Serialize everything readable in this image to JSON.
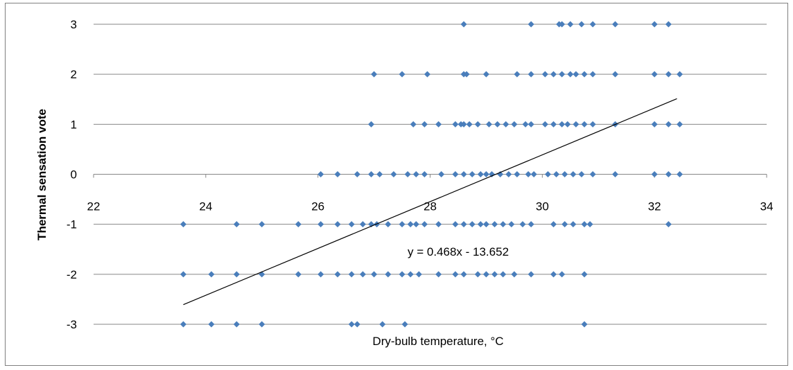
{
  "chart_data": {
    "type": "scatter",
    "xlabel": "Dry-bulb temperature, °C",
    "ylabel": "Thermal sensation vote",
    "xlim": [
      22,
      34
    ],
    "ylim": [
      -3,
      3
    ],
    "x_ticks": [
      "22",
      "24",
      "26",
      "28",
      "30",
      "32",
      "34"
    ],
    "y_ticks": [
      "3",
      "2",
      "1",
      "0",
      "-1",
      "-2",
      "-3"
    ],
    "grid": "horizontal",
    "marker_color": "#4a7ebb",
    "trendline": {
      "slope": 0.468,
      "intercept": -13.652,
      "x_range": [
        23.6,
        32.4
      ],
      "color": "#000000"
    },
    "annotation": "y = 0.468x - 13.652",
    "series": [
      {
        "points": [
          [
            28.6,
            3
          ],
          [
            29.8,
            3
          ],
          [
            30.3,
            3
          ],
          [
            30.35,
            3
          ],
          [
            30.5,
            3
          ],
          [
            30.7,
            3
          ],
          [
            30.9,
            3
          ],
          [
            31.3,
            3
          ],
          [
            32.0,
            3
          ],
          [
            32.25,
            3
          ],
          [
            27.0,
            2
          ],
          [
            27.5,
            2
          ],
          [
            27.95,
            2
          ],
          [
            28.6,
            2
          ],
          [
            28.65,
            2
          ],
          [
            29.0,
            2
          ],
          [
            29.55,
            2
          ],
          [
            29.8,
            2
          ],
          [
            30.05,
            2
          ],
          [
            30.2,
            2
          ],
          [
            30.35,
            2
          ],
          [
            30.5,
            2
          ],
          [
            30.6,
            2
          ],
          [
            30.75,
            2
          ],
          [
            30.9,
            2
          ],
          [
            31.3,
            2
          ],
          [
            32.0,
            2
          ],
          [
            32.25,
            2
          ],
          [
            32.45,
            2
          ],
          [
            26.95,
            1
          ],
          [
            27.7,
            1
          ],
          [
            27.9,
            1
          ],
          [
            28.15,
            1
          ],
          [
            28.45,
            1
          ],
          [
            28.55,
            1
          ],
          [
            28.6,
            1
          ],
          [
            28.7,
            1
          ],
          [
            28.85,
            1
          ],
          [
            29.05,
            1
          ],
          [
            29.2,
            1
          ],
          [
            29.35,
            1
          ],
          [
            29.5,
            1
          ],
          [
            29.7,
            1
          ],
          [
            29.8,
            1
          ],
          [
            30.05,
            1
          ],
          [
            30.2,
            1
          ],
          [
            30.35,
            1
          ],
          [
            30.45,
            1
          ],
          [
            30.6,
            1
          ],
          [
            30.75,
            1
          ],
          [
            30.9,
            1
          ],
          [
            31.3,
            1
          ],
          [
            32.0,
            1
          ],
          [
            32.25,
            1
          ],
          [
            32.45,
            1
          ],
          [
            26.05,
            0
          ],
          [
            26.35,
            0
          ],
          [
            26.7,
            0
          ],
          [
            26.95,
            0
          ],
          [
            27.1,
            0
          ],
          [
            27.35,
            0
          ],
          [
            27.6,
            0
          ],
          [
            27.75,
            0
          ],
          [
            27.9,
            0
          ],
          [
            28.2,
            0
          ],
          [
            28.45,
            0
          ],
          [
            28.6,
            0
          ],
          [
            28.75,
            0
          ],
          [
            28.9,
            0
          ],
          [
            29.0,
            0
          ],
          [
            29.1,
            0
          ],
          [
            29.25,
            0
          ],
          [
            29.4,
            0
          ],
          [
            29.55,
            0
          ],
          [
            29.75,
            0
          ],
          [
            29.85,
            0
          ],
          [
            30.1,
            0
          ],
          [
            30.25,
            0
          ],
          [
            30.4,
            0
          ],
          [
            30.55,
            0
          ],
          [
            30.7,
            0
          ],
          [
            30.9,
            0
          ],
          [
            31.3,
            0
          ],
          [
            32.0,
            0
          ],
          [
            32.25,
            0
          ],
          [
            32.45,
            0
          ],
          [
            23.6,
            -1
          ],
          [
            24.55,
            -1
          ],
          [
            25.0,
            -1
          ],
          [
            25.65,
            -1
          ],
          [
            26.05,
            -1
          ],
          [
            26.35,
            -1
          ],
          [
            26.6,
            -1
          ],
          [
            26.8,
            -1
          ],
          [
            26.95,
            -1
          ],
          [
            27.05,
            -1
          ],
          [
            27.25,
            -1
          ],
          [
            27.5,
            -1
          ],
          [
            27.65,
            -1
          ],
          [
            27.75,
            -1
          ],
          [
            27.9,
            -1
          ],
          [
            28.15,
            -1
          ],
          [
            28.45,
            -1
          ],
          [
            28.6,
            -1
          ],
          [
            28.75,
            -1
          ],
          [
            28.9,
            -1
          ],
          [
            29.0,
            -1
          ],
          [
            29.15,
            -1
          ],
          [
            29.3,
            -1
          ],
          [
            29.45,
            -1
          ],
          [
            29.65,
            -1
          ],
          [
            29.8,
            -1
          ],
          [
            30.2,
            -1
          ],
          [
            30.4,
            -1
          ],
          [
            30.55,
            -1
          ],
          [
            30.75,
            -1
          ],
          [
            30.85,
            -1
          ],
          [
            32.25,
            -1
          ],
          [
            23.6,
            -2
          ],
          [
            24.1,
            -2
          ],
          [
            24.55,
            -2
          ],
          [
            25.0,
            -2
          ],
          [
            25.65,
            -2
          ],
          [
            26.05,
            -2
          ],
          [
            26.35,
            -2
          ],
          [
            26.6,
            -2
          ],
          [
            26.8,
            -2
          ],
          [
            27.0,
            -2
          ],
          [
            27.25,
            -2
          ],
          [
            27.5,
            -2
          ],
          [
            27.65,
            -2
          ],
          [
            27.8,
            -2
          ],
          [
            28.15,
            -2
          ],
          [
            28.45,
            -2
          ],
          [
            28.6,
            -2
          ],
          [
            28.85,
            -2
          ],
          [
            29.0,
            -2
          ],
          [
            29.15,
            -2
          ],
          [
            29.3,
            -2
          ],
          [
            29.5,
            -2
          ],
          [
            29.8,
            -2
          ],
          [
            30.2,
            -2
          ],
          [
            30.35,
            -2
          ],
          [
            30.75,
            -2
          ],
          [
            23.6,
            -3
          ],
          [
            24.1,
            -3
          ],
          [
            24.55,
            -3
          ],
          [
            25.0,
            -3
          ],
          [
            26.6,
            -3
          ],
          [
            26.7,
            -3
          ],
          [
            27.15,
            -3
          ],
          [
            27.55,
            -3
          ],
          [
            30.75,
            -3
          ]
        ]
      }
    ]
  }
}
